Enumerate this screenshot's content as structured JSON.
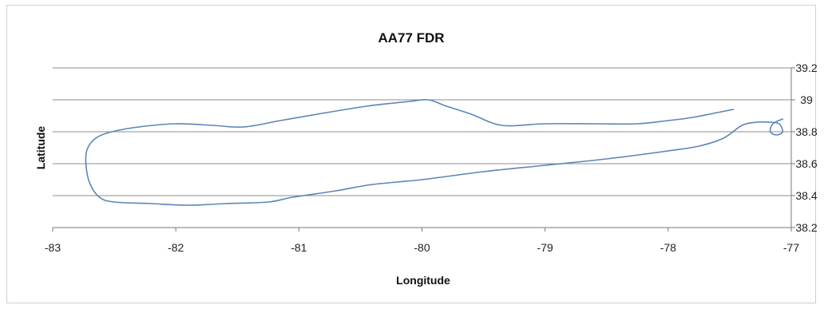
{
  "chart_data": {
    "type": "scatter",
    "title": "AA77 FDR",
    "xlabel": "Longitude",
    "ylabel": "Latitude",
    "xlim": [
      -83,
      -77
    ],
    "ylim": [
      38.2,
      39.2
    ],
    "x_ticks": [
      "-83",
      "-82",
      "-81",
      "-80",
      "-79",
      "-78",
      "-77"
    ],
    "y_ticks": [
      "39.2",
      "39",
      "38.8",
      "38.6",
      "38.4",
      "38.2"
    ],
    "grid": true,
    "legend": "none",
    "series": [
      {
        "color": "#5b86b5",
        "style": "smooth-line",
        "points": [
          [
            -77.47,
            38.94
          ],
          [
            -77.6,
            38.92
          ],
          [
            -77.8,
            38.89
          ],
          [
            -78.0,
            38.87
          ],
          [
            -78.25,
            38.85
          ],
          [
            -78.6,
            38.85
          ],
          [
            -79.0,
            38.85
          ],
          [
            -79.35,
            38.84
          ],
          [
            -79.6,
            38.91
          ],
          [
            -79.8,
            38.96
          ],
          [
            -79.95,
            39.0
          ],
          [
            -80.1,
            38.99
          ],
          [
            -80.45,
            38.96
          ],
          [
            -80.85,
            38.91
          ],
          [
            -81.15,
            38.87
          ],
          [
            -81.45,
            38.83
          ],
          [
            -81.7,
            38.84
          ],
          [
            -82.0,
            38.85
          ],
          [
            -82.3,
            38.83
          ],
          [
            -82.52,
            38.8
          ],
          [
            -82.65,
            38.76
          ],
          [
            -82.72,
            38.69
          ],
          [
            -82.73,
            38.6
          ],
          [
            -82.7,
            38.48
          ],
          [
            -82.62,
            38.39
          ],
          [
            -82.5,
            38.36
          ],
          [
            -82.2,
            38.35
          ],
          [
            -81.9,
            38.34
          ],
          [
            -81.6,
            38.35
          ],
          [
            -81.25,
            38.36
          ],
          [
            -81.05,
            38.39
          ],
          [
            -80.7,
            38.43
          ],
          [
            -80.4,
            38.47
          ],
          [
            -80.0,
            38.5
          ],
          [
            -79.5,
            38.55
          ],
          [
            -79.0,
            38.59
          ],
          [
            -78.5,
            38.63
          ],
          [
            -78.0,
            38.68
          ],
          [
            -77.75,
            38.71
          ],
          [
            -77.55,
            38.76
          ],
          [
            -77.4,
            38.84
          ],
          [
            -77.28,
            38.86
          ],
          [
            -77.18,
            38.86
          ],
          [
            -77.1,
            38.85
          ],
          [
            -77.07,
            38.8
          ],
          [
            -77.12,
            38.78
          ],
          [
            -77.17,
            38.8
          ],
          [
            -77.15,
            38.85
          ],
          [
            -77.07,
            38.88
          ]
        ]
      }
    ]
  }
}
